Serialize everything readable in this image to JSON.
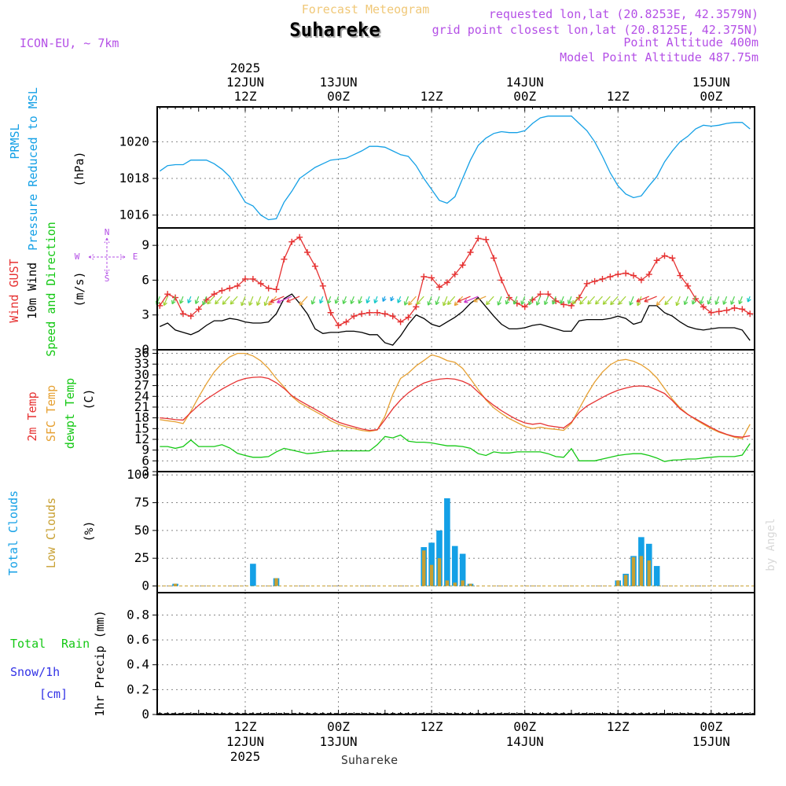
{
  "header": {
    "title": "Forecast Meteogram",
    "location": "Suhareke",
    "model": "ICON-EU, ~ 7km",
    "requested": "requested lon,lat (20.8253E, 42.3579N)",
    "gridpoint": "grid point closest lon,lat (20.8125E, 42.375N)",
    "point_alt": "Point Altitude 400m",
    "model_alt": "Model Point Altitude 487.75m",
    "footer": "Suhareke",
    "credit": "by Angel"
  },
  "colors": {
    "pressure": "#14a0e6",
    "gust": "#e63232",
    "wind": "#000000",
    "temp": "#e63232",
    "sfc": "#e6a032",
    "dew": "#14c814",
    "total_cloud": "#14a0e6",
    "low_cloud": "#c8a032",
    "rain": "#14c814",
    "snow": "#3232e6",
    "purple": "#b450e6",
    "title_orange": "#f0c878",
    "grid": "#888888"
  },
  "time_axis": {
    "top_labels": [
      {
        "h": 12,
        "lines": [
          "2025",
          "12JUN",
          "12Z"
        ]
      },
      {
        "h": 24,
        "lines": [
          "13JUN",
          "00Z"
        ]
      },
      {
        "h": 36,
        "lines": [
          "12Z"
        ]
      },
      {
        "h": 48,
        "lines": [
          "14JUN",
          "00Z"
        ]
      },
      {
        "h": 60,
        "lines": [
          "12Z"
        ]
      },
      {
        "h": 72,
        "lines": [
          "15JUN",
          "00Z"
        ]
      }
    ],
    "bottom_labels": [
      {
        "h": 12,
        "lines": [
          "12Z",
          "12JUN",
          "2025"
        ]
      },
      {
        "h": 24,
        "lines": [
          "00Z",
          "13JUN"
        ]
      },
      {
        "h": 36,
        "lines": [
          "12Z"
        ]
      },
      {
        "h": 48,
        "lines": [
          "00Z",
          "14JUN"
        ]
      },
      {
        "h": 60,
        "lines": [
          "12Z"
        ]
      },
      {
        "h": 72,
        "lines": [
          "00Z",
          "15JUN"
        ]
      }
    ]
  },
  "panel_labels": {
    "pressure": [
      "PRMSL",
      "Pressure Reduced to MSL"
    ],
    "pressure_unit": "(hPa)",
    "wind_gust": "Wind GUST",
    "wind_10m": "10m Wind",
    "wind_dir": "Speed and Direction",
    "wind_unit": "(m/s)",
    "compass": {
      "n": "N",
      "s": "S",
      "e": "E",
      "w": "W"
    },
    "temp_2m": "2m Temp",
    "temp_sfc": "SFC Temp",
    "temp_dew": "dewpt Temp",
    "temp_unit": "(C)",
    "cloud_total": "Total Clouds",
    "cloud_low": "Low Clouds",
    "cloud_unit": "(%)",
    "precip_total": "Total",
    "precip_rain": "Rain",
    "precip_snow": "Snow/1h",
    "precip_cm": "[cm]",
    "precip_unit": "1hr Precip (mm)"
  },
  "chart_data": [
    {
      "type": "line",
      "title": "PRMSL Pressure Reduced to MSL",
      "ylabel": "(hPa)",
      "ylim": [
        1015.3,
        1021.9
      ],
      "yticks": [
        1016,
        1018,
        1020
      ],
      "x_hours": [
        1,
        2,
        3,
        4,
        5,
        6,
        7,
        8,
        9,
        10,
        11,
        12,
        13,
        14,
        15,
        16,
        17,
        18,
        19,
        20,
        21,
        22,
        23,
        24,
        25,
        26,
        27,
        28,
        29,
        30,
        31,
        32,
        33,
        34,
        35,
        36,
        37,
        38,
        39,
        40,
        41,
        42,
        43,
        44,
        45,
        46,
        47,
        48,
        49,
        50,
        51,
        52,
        53,
        54,
        55,
        56,
        57,
        58,
        59,
        60,
        61,
        62,
        63,
        64,
        65,
        66,
        67,
        68,
        69,
        70,
        71,
        72,
        73,
        74,
        75,
        76,
        77
      ],
      "series": [
        {
          "name": "PRMSL",
          "values": [
            1018.4,
            1018.7,
            1018.75,
            1018.75,
            1019.0,
            1019.0,
            1019.0,
            1018.8,
            1018.5,
            1018.1,
            1017.4,
            1016.7,
            1016.5,
            1016.0,
            1015.75,
            1015.8,
            1016.7,
            1017.3,
            1018.0,
            1018.3,
            1018.6,
            1018.8,
            1019.0,
            1019.05,
            1019.1,
            1019.3,
            1019.5,
            1019.75,
            1019.75,
            1019.7,
            1019.5,
            1019.3,
            1019.2,
            1018.7,
            1018.0,
            1017.4,
            1016.8,
            1016.65,
            1017.0,
            1018.0,
            1019.0,
            1019.8,
            1020.2,
            1020.45,
            1020.55,
            1020.5,
            1020.5,
            1020.6,
            1021.0,
            1021.3,
            1021.4,
            1021.4,
            1021.4,
            1021.4,
            1021.0,
            1020.6,
            1020.0,
            1019.2,
            1018.3,
            1017.6,
            1017.15,
            1016.95,
            1017.05,
            1017.6,
            1018.1,
            1018.9,
            1019.5,
            1020.0,
            1020.3,
            1020.7,
            1020.9,
            1020.85,
            1020.9,
            1021.0,
            1021.05,
            1021.05,
            1020.7
          ]
        }
      ]
    },
    {
      "type": "line",
      "title": "Wind GUST / 10m Wind Speed and Direction",
      "ylabel": "(m/s)",
      "ylim": [
        0,
        10.5
      ],
      "yticks": [
        0,
        3,
        6,
        9
      ],
      "x_hours": [
        1,
        2,
        3,
        4,
        5,
        6,
        7,
        8,
        9,
        10,
        11,
        12,
        13,
        14,
        15,
        16,
        17,
        18,
        19,
        20,
        21,
        22,
        23,
        24,
        25,
        26,
        27,
        28,
        29,
        30,
        31,
        32,
        33,
        34,
        35,
        36,
        37,
        38,
        39,
        40,
        41,
        42,
        43,
        44,
        45,
        46,
        47,
        48,
        49,
        50,
        51,
        52,
        53,
        54,
        55,
        56,
        57,
        58,
        59,
        60,
        61,
        62,
        63,
        64,
        65,
        66,
        67,
        68,
        69,
        70,
        71,
        72,
        73,
        74,
        75,
        76,
        77
      ],
      "series": [
        {
          "name": "Wind GUST",
          "values": [
            3.8,
            4.8,
            4.5,
            3.1,
            2.9,
            3.5,
            4.3,
            4.8,
            5.1,
            5.3,
            5.5,
            6.1,
            6.1,
            5.7,
            5.3,
            5.2,
            7.8,
            9.3,
            9.7,
            8.4,
            7.2,
            5.5,
            3.2,
            2.1,
            2.4,
            2.9,
            3.1,
            3.2,
            3.2,
            3.1,
            2.9,
            2.4,
            2.8,
            3.7,
            6.3,
            6.2,
            5.4,
            5.8,
            6.5,
            7.3,
            8.4,
            9.6,
            9.5,
            7.9,
            6.0,
            4.5,
            4.0,
            3.7,
            4.3,
            4.8,
            4.8,
            4.2,
            3.9,
            3.8,
            4.5,
            5.7,
            5.9,
            6.1,
            6.3,
            6.5,
            6.6,
            6.4,
            6.0,
            6.5,
            7.7,
            8.1,
            7.9,
            6.4,
            5.5,
            4.4,
            3.7,
            3.2,
            3.3,
            3.4,
            3.6,
            3.5,
            3.1
          ]
        },
        {
          "name": "10m Wind",
          "values": [
            2.0,
            2.3,
            1.7,
            1.5,
            1.3,
            1.6,
            2.1,
            2.5,
            2.5,
            2.7,
            2.6,
            2.4,
            2.3,
            2.3,
            2.4,
            3.1,
            4.4,
            4.8,
            4.0,
            3.1,
            1.8,
            1.4,
            1.5,
            1.5,
            1.6,
            1.6,
            1.5,
            1.3,
            1.3,
            0.6,
            0.4,
            1.2,
            2.2,
            3.0,
            2.7,
            2.2,
            2.0,
            2.4,
            2.8,
            3.3,
            4.0,
            4.5,
            3.7,
            2.9,
            2.2,
            1.8,
            1.8,
            1.9,
            2.1,
            2.2,
            2.0,
            1.8,
            1.6,
            1.6,
            2.5,
            2.6,
            2.6,
            2.6,
            2.7,
            2.9,
            2.7,
            2.2,
            2.4,
            3.8,
            3.8,
            3.2,
            2.9,
            2.4,
            2.0,
            1.8,
            1.7,
            1.8,
            1.9,
            1.9,
            1.9,
            1.7,
            0.8
          ]
        }
      ]
    },
    {
      "type": "line",
      "title": "2m Temp / SFC Temp / dewpt Temp",
      "ylabel": "(C)",
      "ylim": [
        3,
        37
      ],
      "yticks": [
        3,
        6,
        9,
        12,
        15,
        18,
        21,
        24,
        27,
        30,
        33,
        36
      ],
      "x_hours": [
        1,
        2,
        3,
        4,
        5,
        6,
        7,
        8,
        9,
        10,
        11,
        12,
        13,
        14,
        15,
        16,
        17,
        18,
        19,
        20,
        21,
        22,
        23,
        24,
        25,
        26,
        27,
        28,
        29,
        30,
        31,
        32,
        33,
        34,
        35,
        36,
        37,
        38,
        39,
        40,
        41,
        42,
        43,
        44,
        45,
        46,
        47,
        48,
        49,
        50,
        51,
        52,
        53,
        54,
        55,
        56,
        57,
        58,
        59,
        60,
        61,
        62,
        63,
        64,
        65,
        66,
        67,
        68,
        69,
        70,
        71,
        72,
        73,
        74,
        75,
        76,
        77
      ],
      "series": [
        {
          "name": "2m Temp",
          "values": [
            18,
            17.8,
            17.5,
            17.4,
            19.5,
            21.5,
            23.2,
            24.6,
            26.0,
            27.2,
            28.3,
            29.0,
            29.3,
            29.4,
            29.0,
            27.8,
            26.2,
            24.2,
            22.8,
            21.6,
            20.4,
            19.2,
            17.9,
            16.8,
            16.1,
            15.5,
            14.9,
            14.5,
            14.7,
            17.5,
            20.5,
            23.0,
            25.0,
            26.5,
            27.7,
            28.4,
            28.8,
            29.0,
            28.8,
            28.2,
            27.2,
            25.2,
            23.2,
            21.5,
            20.0,
            18.7,
            17.5,
            16.6,
            16.2,
            16.5,
            15.8,
            15.5,
            15.2,
            16.8,
            19.5,
            21.3,
            22.5,
            23.7,
            24.8,
            25.7,
            26.3,
            26.8,
            26.9,
            26.7,
            25.8,
            24.8,
            22.8,
            20.5,
            18.9,
            17.7,
            16.5,
            15.3,
            14.2,
            13.4,
            12.8,
            12.6,
            13.0
          ]
        },
        {
          "name": "SFC Temp",
          "values": [
            17.5,
            17.2,
            16.9,
            16.4,
            19.8,
            23.8,
            27.5,
            30.8,
            33.2,
            35.0,
            36.0,
            36.0,
            35.3,
            33.9,
            31.8,
            29.0,
            26.6,
            24.0,
            22.2,
            21.0,
            19.8,
            18.6,
            17.2,
            16.2,
            15.5,
            15.0,
            14.5,
            14.2,
            14.6,
            18.5,
            24.5,
            29.0,
            30.5,
            32.5,
            34.0,
            35.6,
            35.0,
            34.0,
            33.5,
            31.8,
            28.9,
            25.9,
            23.0,
            20.8,
            19.2,
            17.8,
            16.7,
            15.6,
            15.0,
            15.4,
            15.0,
            14.8,
            14.5,
            16.5,
            20.5,
            24.5,
            28.0,
            30.8,
            32.8,
            34.0,
            34.3,
            33.8,
            32.8,
            31.3,
            29.2,
            26.2,
            23.2,
            20.8,
            19.0,
            17.5,
            16.2,
            15.0,
            14.0,
            13.3,
            12.6,
            12.2,
            16.2
          ]
        },
        {
          "name": "dewpt Temp",
          "values": [
            10.0,
            10.0,
            9.5,
            10.0,
            11.8,
            10.0,
            10.0,
            10.0,
            10.5,
            9.6,
            8.1,
            7.5,
            7.0,
            7.0,
            7.2,
            8.5,
            9.5,
            9.0,
            8.5,
            8.0,
            8.2,
            8.5,
            8.7,
            8.8,
            8.8,
            8.8,
            8.8,
            8.8,
            10.5,
            12.8,
            12.4,
            13.2,
            11.5,
            11.2,
            11.2,
            11.0,
            10.6,
            10.2,
            10.2,
            10.0,
            9.5,
            8.0,
            7.5,
            8.5,
            8.2,
            8.2,
            8.5,
            8.5,
            8.5,
            8.5,
            8.0,
            7.2,
            7.0,
            9.4,
            6.0,
            6.0,
            6.0,
            6.5,
            7.0,
            7.5,
            7.8,
            8.0,
            8.0,
            7.5,
            6.8,
            5.8,
            6.2,
            6.3,
            6.5,
            6.5,
            6.8,
            7.0,
            7.2,
            7.2,
            7.2,
            7.6,
            10.8
          ]
        }
      ]
    },
    {
      "type": "bar",
      "title": "Total Clouds / Low Clouds",
      "ylabel": "(%)",
      "ylim": [
        -6,
        103
      ],
      "yticks": [
        0,
        25,
        50,
        75,
        100
      ],
      "series": [
        {
          "name": "Total Clouds",
          "points": [
            [
              3,
              2
            ],
            [
              13,
              20
            ],
            [
              16,
              7
            ],
            [
              35,
              35
            ],
            [
              36,
              39
            ],
            [
              37,
              50
            ],
            [
              38,
              79
            ],
            [
              39,
              36
            ],
            [
              40,
              29
            ],
            [
              41,
              2
            ],
            [
              60,
              5
            ],
            [
              61,
              11
            ],
            [
              62,
              27
            ],
            [
              63,
              44
            ],
            [
              64,
              38
            ],
            [
              65,
              18
            ]
          ]
        },
        {
          "name": "Low Clouds",
          "points": [
            [
              3,
              2
            ],
            [
              16,
              7
            ],
            [
              35,
              32
            ],
            [
              36,
              19
            ],
            [
              37,
              25
            ],
            [
              38,
              5
            ],
            [
              39,
              3
            ],
            [
              40,
              5
            ],
            [
              41,
              2
            ],
            [
              60,
              5
            ],
            [
              61,
              10
            ],
            [
              62,
              26
            ],
            [
              63,
              27
            ],
            [
              64,
              23
            ]
          ]
        }
      ]
    },
    {
      "type": "bar",
      "title": "Total Rain / Snow/1h [cm]",
      "ylabel": "1hr Precip (mm)",
      "ylim": [
        0,
        0.98
      ],
      "yticks": [
        0,
        0.2,
        0.4,
        0.6,
        0.8
      ],
      "series": [
        {
          "name": "Total Rain",
          "values": []
        },
        {
          "name": "Snow/1h",
          "values": []
        }
      ]
    }
  ]
}
